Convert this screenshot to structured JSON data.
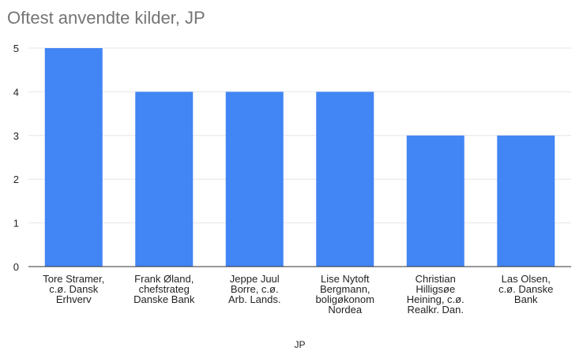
{
  "chart_data": {
    "type": "bar",
    "title": "Oftest anvendte kilder, JP",
    "xlabel": "JP",
    "ylabel": "",
    "ylim": [
      0,
      5
    ],
    "yticks": [
      0,
      1,
      2,
      3,
      4,
      5
    ],
    "grid": true,
    "legend": "none",
    "bar_color": "#4285f4",
    "categories": [
      [
        "Tore Stramer,",
        "c.ø. Dansk",
        "Erhverv"
      ],
      [
        "Frank Øland,",
        "chefstrateg",
        "Danske Bank"
      ],
      [
        "Jeppe Juul",
        "Borre, c.ø.",
        "Arb. Lands."
      ],
      [
        "Lise Nytoft",
        "Bergmann,",
        "boligøkonom",
        "Nordea"
      ],
      [
        "Christian",
        "Hilligsøe",
        "Heining, c.ø.",
        "Realkr. Dan."
      ],
      [
        "Las Olsen,",
        "c.ø. Danske",
        "Bank"
      ]
    ],
    "values": [
      5,
      4,
      4,
      4,
      3,
      3
    ]
  }
}
